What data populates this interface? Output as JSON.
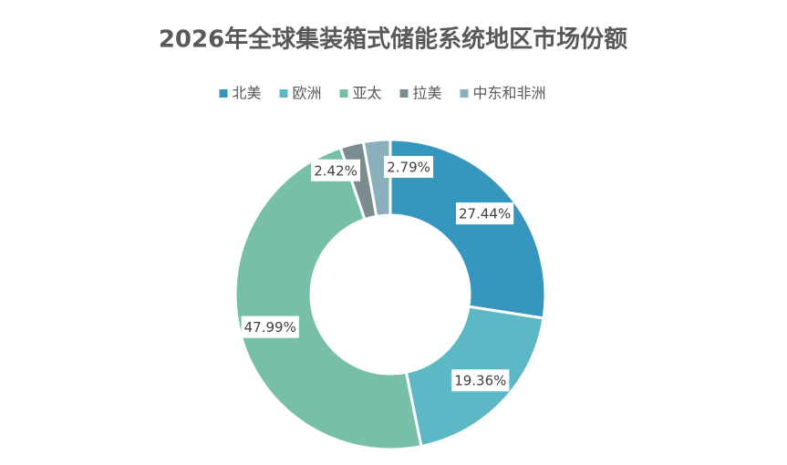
{
  "chart_data": {
    "type": "donut",
    "title": "2026年全球集装箱式储能系统地区市场份额",
    "categories": [
      "北美",
      "欧洲",
      "亚太",
      "拉美",
      "中东和非洲"
    ],
    "values": [
      27.44,
      19.36,
      47.99,
      2.42,
      2.79
    ],
    "value_labels": [
      "27.44%",
      "19.36%",
      "47.99%",
      "2.42%",
      "2.79%"
    ],
    "colors": [
      "#3796bd",
      "#5bb8c4",
      "#78bfa8",
      "#7a8c8e",
      "#8ab0bb"
    ],
    "legend": "top"
  }
}
